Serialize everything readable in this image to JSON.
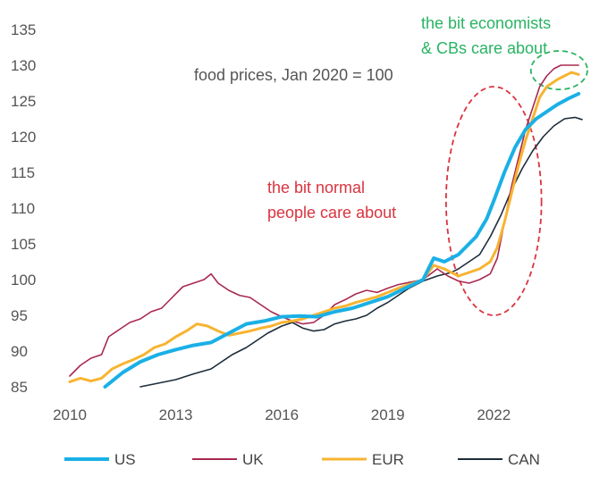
{
  "chart_data": {
    "type": "line",
    "subtitle": "food prices, Jan 2020 = 100",
    "xlim": [
      2010,
      2024.6
    ],
    "ylim": [
      85,
      135
    ],
    "x_ticks": [
      2010,
      2013,
      2016,
      2019,
      2022
    ],
    "y_ticks": [
      85,
      90,
      95,
      100,
      105,
      110,
      115,
      120,
      125,
      130,
      135
    ],
    "grid": false,
    "legend_position": "bottom",
    "annotations": [
      {
        "id": "normal",
        "lines": [
          "the bit normal",
          "people care about"
        ],
        "color": "#d9343f"
      },
      {
        "id": "econ",
        "lines": [
          "the bit economists",
          "& CBs care about"
        ],
        "color": "#28b463"
      }
    ],
    "highlights": [
      {
        "id": "normal-ellipse",
        "cx": 2022.0,
        "cy": 111,
        "rx": 1.35,
        "ry": 16,
        "color": "#d9343f"
      },
      {
        "id": "econ-ellipse",
        "cx": 2023.85,
        "cy": 129.3,
        "rx": 0.8,
        "ry": 2.7,
        "color": "#28b463"
      }
    ],
    "series": [
      {
        "name": "US",
        "color": "#1ab0e6",
        "width": 4,
        "points": [
          [
            2011.0,
            85.0
          ],
          [
            2011.5,
            87.0
          ],
          [
            2012.0,
            88.5
          ],
          [
            2012.5,
            89.5
          ],
          [
            2013.0,
            90.2
          ],
          [
            2013.5,
            90.8
          ],
          [
            2014.0,
            91.2
          ],
          [
            2014.5,
            92.5
          ],
          [
            2015.0,
            93.8
          ],
          [
            2015.5,
            94.2
          ],
          [
            2016.0,
            94.8
          ],
          [
            2016.5,
            94.9
          ],
          [
            2017.0,
            94.8
          ],
          [
            2017.5,
            95.5
          ],
          [
            2018.0,
            96.0
          ],
          [
            2018.5,
            96.8
          ],
          [
            2019.0,
            97.6
          ],
          [
            2019.5,
            98.8
          ],
          [
            2020.0,
            100.0
          ],
          [
            2020.3,
            103.0
          ],
          [
            2020.6,
            102.5
          ],
          [
            2021.0,
            103.5
          ],
          [
            2021.5,
            106.0
          ],
          [
            2021.8,
            108.5
          ],
          [
            2022.0,
            111.0
          ],
          [
            2022.3,
            115.0
          ],
          [
            2022.6,
            118.5
          ],
          [
            2022.9,
            121.0
          ],
          [
            2023.2,
            122.5
          ],
          [
            2023.5,
            123.5
          ],
          [
            2023.8,
            124.5
          ],
          [
            2024.1,
            125.3
          ],
          [
            2024.4,
            126.0
          ]
        ]
      },
      {
        "name": "UK",
        "color": "#a8294f",
        "width": 1.6,
        "points": [
          [
            2010.0,
            86.5
          ],
          [
            2010.3,
            88.0
          ],
          [
            2010.6,
            89.0
          ],
          [
            2010.9,
            89.5
          ],
          [
            2011.1,
            92.0
          ],
          [
            2011.4,
            93.0
          ],
          [
            2011.7,
            94.0
          ],
          [
            2012.0,
            94.5
          ],
          [
            2012.3,
            95.5
          ],
          [
            2012.6,
            96.0
          ],
          [
            2012.9,
            97.5
          ],
          [
            2013.2,
            99.0
          ],
          [
            2013.5,
            99.5
          ],
          [
            2013.8,
            100.0
          ],
          [
            2014.0,
            100.8
          ],
          [
            2014.2,
            99.5
          ],
          [
            2014.5,
            98.5
          ],
          [
            2014.8,
            97.8
          ],
          [
            2015.1,
            97.5
          ],
          [
            2015.4,
            96.5
          ],
          [
            2015.7,
            95.5
          ],
          [
            2016.0,
            94.8
          ],
          [
            2016.3,
            94.2
          ],
          [
            2016.6,
            93.8
          ],
          [
            2016.9,
            94.0
          ],
          [
            2017.2,
            95.0
          ],
          [
            2017.5,
            96.5
          ],
          [
            2017.8,
            97.2
          ],
          [
            2018.1,
            98.0
          ],
          [
            2018.4,
            98.5
          ],
          [
            2018.7,
            98.2
          ],
          [
            2019.0,
            98.8
          ],
          [
            2019.3,
            99.3
          ],
          [
            2019.6,
            99.6
          ],
          [
            2020.0,
            100.0
          ],
          [
            2020.4,
            101.5
          ],
          [
            2020.7,
            100.5
          ],
          [
            2021.0,
            99.8
          ],
          [
            2021.3,
            99.5
          ],
          [
            2021.6,
            100.0
          ],
          [
            2021.9,
            100.8
          ],
          [
            2022.1,
            103.0
          ],
          [
            2022.3,
            108.0
          ],
          [
            2022.5,
            113.0
          ],
          [
            2022.7,
            117.0
          ],
          [
            2022.9,
            121.0
          ],
          [
            2023.1,
            124.0
          ],
          [
            2023.3,
            127.0
          ],
          [
            2023.5,
            128.5
          ],
          [
            2023.7,
            129.5
          ],
          [
            2023.9,
            130.0
          ],
          [
            2024.1,
            130.0
          ],
          [
            2024.4,
            130.0
          ]
        ]
      },
      {
        "name": "EUR",
        "color": "#f7b431",
        "width": 3,
        "points": [
          [
            2010.0,
            85.7
          ],
          [
            2010.3,
            86.2
          ],
          [
            2010.6,
            85.8
          ],
          [
            2010.9,
            86.2
          ],
          [
            2011.2,
            87.5
          ],
          [
            2011.5,
            88.2
          ],
          [
            2011.8,
            88.8
          ],
          [
            2012.1,
            89.5
          ],
          [
            2012.4,
            90.5
          ],
          [
            2012.7,
            91.0
          ],
          [
            2013.0,
            92.0
          ],
          [
            2013.3,
            92.8
          ],
          [
            2013.6,
            93.8
          ],
          [
            2013.9,
            93.5
          ],
          [
            2014.2,
            92.8
          ],
          [
            2014.5,
            92.2
          ],
          [
            2014.8,
            92.5
          ],
          [
            2015.1,
            92.8
          ],
          [
            2015.4,
            93.2
          ],
          [
            2015.7,
            93.5
          ],
          [
            2016.0,
            94.0
          ],
          [
            2016.3,
            94.2
          ],
          [
            2016.6,
            94.5
          ],
          [
            2016.9,
            95.0
          ],
          [
            2017.2,
            95.5
          ],
          [
            2017.5,
            96.0
          ],
          [
            2017.8,
            96.3
          ],
          [
            2018.1,
            96.8
          ],
          [
            2018.4,
            97.2
          ],
          [
            2018.7,
            97.6
          ],
          [
            2019.0,
            98.2
          ],
          [
            2019.3,
            98.8
          ],
          [
            2019.6,
            99.3
          ],
          [
            2020.0,
            100.0
          ],
          [
            2020.3,
            102.0
          ],
          [
            2020.6,
            101.5
          ],
          [
            2021.0,
            100.5
          ],
          [
            2021.3,
            101.0
          ],
          [
            2021.6,
            101.5
          ],
          [
            2021.9,
            102.5
          ],
          [
            2022.1,
            104.5
          ],
          [
            2022.3,
            108.0
          ],
          [
            2022.5,
            112.0
          ],
          [
            2022.7,
            116.0
          ],
          [
            2022.9,
            119.5
          ],
          [
            2023.1,
            122.5
          ],
          [
            2023.3,
            125.5
          ],
          [
            2023.5,
            127.0
          ],
          [
            2023.8,
            128.0
          ],
          [
            2024.0,
            128.5
          ],
          [
            2024.2,
            129.0
          ],
          [
            2024.4,
            128.7
          ]
        ]
      },
      {
        "name": "CAN",
        "color": "#1d2d3a",
        "width": 1.6,
        "points": [
          [
            2012.0,
            85.0
          ],
          [
            2012.5,
            85.5
          ],
          [
            2013.0,
            86.0
          ],
          [
            2013.5,
            86.8
          ],
          [
            2014.0,
            87.5
          ],
          [
            2014.3,
            88.5
          ],
          [
            2014.6,
            89.5
          ],
          [
            2015.0,
            90.5
          ],
          [
            2015.3,
            91.5
          ],
          [
            2015.6,
            92.5
          ],
          [
            2016.0,
            93.5
          ],
          [
            2016.3,
            94.0
          ],
          [
            2016.6,
            93.2
          ],
          [
            2016.9,
            92.8
          ],
          [
            2017.2,
            93.0
          ],
          [
            2017.5,
            93.8
          ],
          [
            2017.8,
            94.2
          ],
          [
            2018.1,
            94.5
          ],
          [
            2018.4,
            95.0
          ],
          [
            2018.7,
            96.0
          ],
          [
            2019.0,
            96.8
          ],
          [
            2019.3,
            97.8
          ],
          [
            2019.6,
            98.8
          ],
          [
            2020.0,
            99.8
          ],
          [
            2020.4,
            100.5
          ],
          [
            2020.8,
            101.0
          ],
          [
            2021.0,
            101.5
          ],
          [
            2021.3,
            102.5
          ],
          [
            2021.6,
            103.5
          ],
          [
            2021.9,
            106.0
          ],
          [
            2022.2,
            109.0
          ],
          [
            2022.5,
            112.5
          ],
          [
            2022.8,
            115.5
          ],
          [
            2023.1,
            118.0
          ],
          [
            2023.4,
            120.0
          ],
          [
            2023.7,
            121.5
          ],
          [
            2024.0,
            122.5
          ],
          [
            2024.3,
            122.7
          ],
          [
            2024.5,
            122.4
          ]
        ]
      }
    ]
  }
}
